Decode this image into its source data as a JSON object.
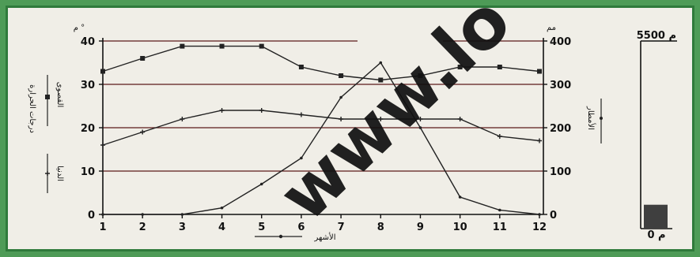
{
  "watermark": "www.lo",
  "chart_data": {
    "type": "line",
    "x": [
      1,
      2,
      3,
      4,
      5,
      6,
      7,
      8,
      9,
      10,
      11,
      12
    ],
    "y_left_ticks": [
      "0",
      "10",
      "20",
      "30",
      "40"
    ],
    "y_right_ticks": [
      "0",
      "100",
      "200",
      "300",
      "400"
    ],
    "y_left_unit": "م °",
    "y_right_unit": "مم",
    "ylim_left": [
      0,
      40
    ],
    "ylim_right": [
      0,
      400
    ],
    "grid": true,
    "series": [
      {
        "axis": "left",
        "marker": "square",
        "values": [
          33,
          36,
          38.8,
          38.8,
          38.8,
          34,
          32,
          31,
          32,
          34,
          34,
          33
        ]
      },
      {
        "axis": "left",
        "marker": "plus",
        "values": [
          16,
          19,
          22,
          24,
          24,
          23,
          22,
          22,
          22,
          22,
          18,
          17
        ]
      },
      {
        "axis": "right",
        "marker": "dot",
        "values": [
          0,
          0,
          0,
          15,
          70,
          130,
          270,
          350,
          200,
          40,
          10,
          0
        ]
      }
    ],
    "left_legend": {
      "top_label": "درجات الحرارة",
      "top_sub": "القصوى",
      "bottom_label": "الدنيا"
    },
    "right_axis_label": "الأمطار",
    "x_axis_label": "الأشهر",
    "elevation_scale": {
      "top_label": "5500 م",
      "bottom_label": "0 م",
      "value": 700,
      "max": 5500
    }
  }
}
